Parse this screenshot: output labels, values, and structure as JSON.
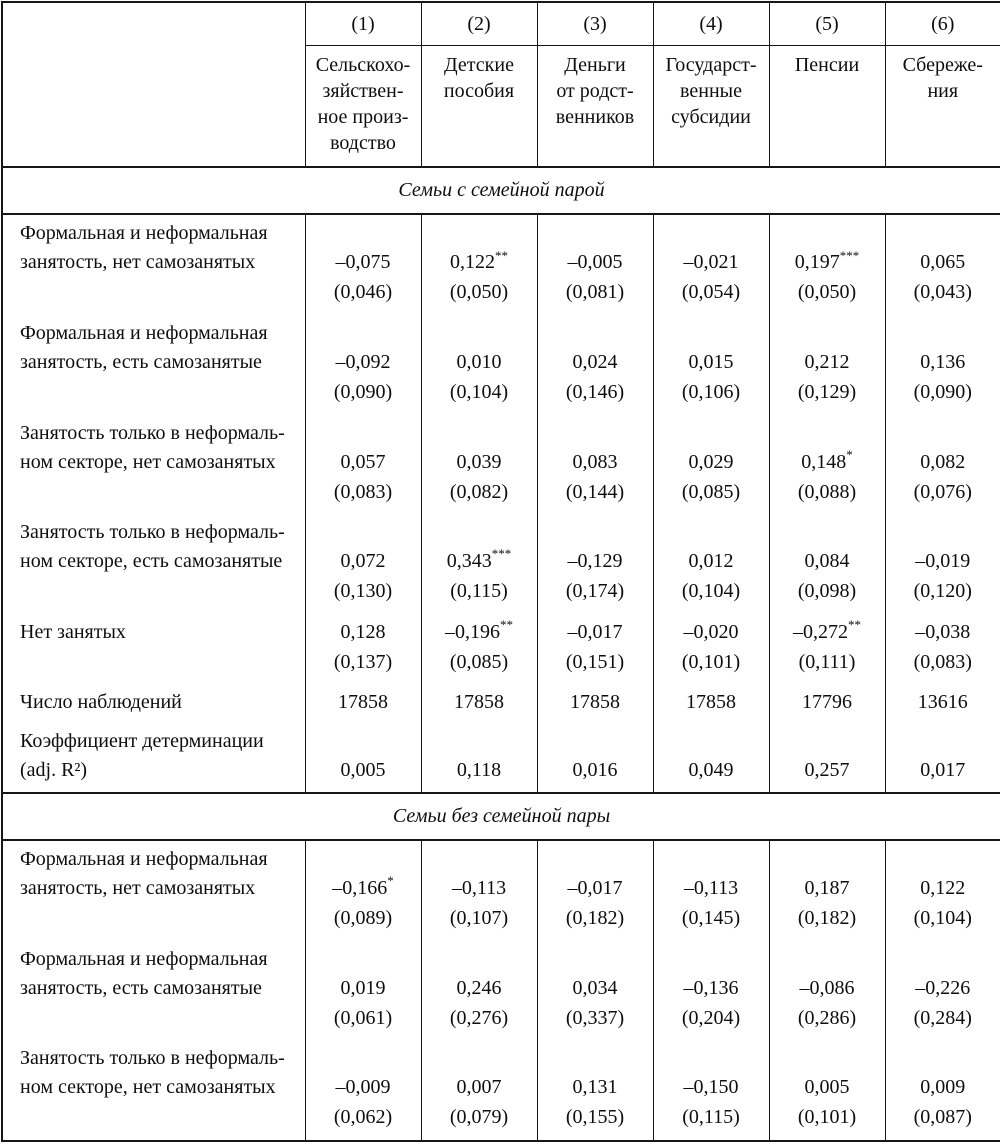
{
  "page": {
    "background": "#ffffff",
    "text_color": "#0e0e0e",
    "border_color": "#161616"
  },
  "table": {
    "column_numbers": [
      "(1)",
      "(2)",
      "(3)",
      "(4)",
      "(5)",
      "(6)"
    ],
    "column_headers": [
      {
        "lines": [
          "Сельскохо-",
          "зяйствен-",
          "ное произ-",
          "водство"
        ]
      },
      {
        "lines": [
          "Детские",
          "пособия"
        ]
      },
      {
        "lines": [
          "Деньги",
          "от родст-",
          "венников"
        ]
      },
      {
        "lines": [
          "Государст-",
          "венные",
          "субсидии"
        ]
      },
      {
        "lines": [
          "Пенсии"
        ]
      },
      {
        "lines": [
          "Сбереже-",
          "ния"
        ]
      }
    ],
    "sections": [
      {
        "title": "Семьи с семейной парой",
        "rows": [
          {
            "label_lines": [
              "Формальная и неформальная",
              "занятость, нет самозанятых"
            ],
            "cells": [
              {
                "value": "–0,075",
                "stars": "",
                "se": "(0,046)"
              },
              {
                "value": "0,122",
                "stars": "**",
                "se": "(0,050)"
              },
              {
                "value": "–0,005",
                "stars": "",
                "se": "(0,081)"
              },
              {
                "value": "–0,021",
                "stars": "",
                "se": "(0,054)"
              },
              {
                "value": "0,197",
                "stars": "***",
                "se": "(0,050)"
              },
              {
                "value": "0,065",
                "stars": "",
                "se": "(0,043)"
              }
            ]
          },
          {
            "label_lines": [
              "Формальная и неформальная",
              "занятость, есть самозанятые"
            ],
            "cells": [
              {
                "value": "–0,092",
                "stars": "",
                "se": "(0,090)"
              },
              {
                "value": "0,010",
                "stars": "",
                "se": "(0,104)"
              },
              {
                "value": "0,024",
                "stars": "",
                "se": "(0,146)"
              },
              {
                "value": "0,015",
                "stars": "",
                "se": "(0,106)"
              },
              {
                "value": "0,212",
                "stars": "",
                "se": "(0,129)"
              },
              {
                "value": "0,136",
                "stars": "",
                "se": "(0,090)"
              }
            ]
          },
          {
            "label_lines": [
              "Занятость только в неформаль-",
              "ном секторе, нет самозанятых"
            ],
            "cells": [
              {
                "value": "0,057",
                "stars": "",
                "se": "(0,083)"
              },
              {
                "value": "0,039",
                "stars": "",
                "se": "(0,082)"
              },
              {
                "value": "0,083",
                "stars": "",
                "se": "(0,144)"
              },
              {
                "value": "0,029",
                "stars": "",
                "se": "(0,085)"
              },
              {
                "value": "0,148",
                "stars": "*",
                "se": "(0,088)"
              },
              {
                "value": "0,082",
                "stars": "",
                "se": "(0,076)"
              }
            ]
          },
          {
            "label_lines": [
              "Занятость только в неформаль-",
              "ном секторе, есть самозанятые"
            ],
            "cells": [
              {
                "value": "0,072",
                "stars": "",
                "se": "(0,130)"
              },
              {
                "value": "0,343",
                "stars": "***",
                "se": "(0,115)"
              },
              {
                "value": "–0,129",
                "stars": "",
                "se": "(0,174)"
              },
              {
                "value": "0,012",
                "stars": "",
                "se": "(0,104)"
              },
              {
                "value": "0,084",
                "stars": "",
                "se": "(0,098)"
              },
              {
                "value": "–0,019",
                "stars": "",
                "se": "(0,120)"
              }
            ]
          },
          {
            "label_lines": [
              "Нет занятых"
            ],
            "cells": [
              {
                "value": "0,128",
                "stars": "",
                "se": "(0,137)"
              },
              {
                "value": "–0,196",
                "stars": "**",
                "se": "(0,085)"
              },
              {
                "value": "–0,017",
                "stars": "",
                "se": "(0,151)"
              },
              {
                "value": "–0,020",
                "stars": "",
                "se": "(0,101)"
              },
              {
                "value": "–0,272",
                "stars": "**",
                "se": "(0,111)"
              },
              {
                "value": "–0,038",
                "stars": "",
                "se": "(0,083)"
              }
            ]
          },
          {
            "label_lines": [
              "Число наблюдений"
            ],
            "cells": [
              {
                "value": "17858",
                "stars": "",
                "se": ""
              },
              {
                "value": "17858",
                "stars": "",
                "se": ""
              },
              {
                "value": "17858",
                "stars": "",
                "se": ""
              },
              {
                "value": "17858",
                "stars": "",
                "se": ""
              },
              {
                "value": "17796",
                "stars": "",
                "se": ""
              },
              {
                "value": "13616",
                "stars": "",
                "se": ""
              }
            ]
          },
          {
            "label_lines": [
              "Коэффициент детерминации",
              "(adj. R²)"
            ],
            "cells": [
              {
                "value": "0,005",
                "stars": "",
                "se": ""
              },
              {
                "value": "0,118",
                "stars": "",
                "se": ""
              },
              {
                "value": "0,016",
                "stars": "",
                "se": ""
              },
              {
                "value": "0,049",
                "stars": "",
                "se": ""
              },
              {
                "value": "0,257",
                "stars": "",
                "se": ""
              },
              {
                "value": "0,017",
                "stars": "",
                "se": ""
              }
            ]
          }
        ]
      },
      {
        "title": "Семьи без семейной пары",
        "rows": [
          {
            "label_lines": [
              "Формальная и неформальная",
              "занятость, нет самозанятых"
            ],
            "cells": [
              {
                "value": "–0,166",
                "stars": "*",
                "se": "(0,089)"
              },
              {
                "value": "–0,113",
                "stars": "",
                "se": "(0,107)"
              },
              {
                "value": "–0,017",
                "stars": "",
                "se": "(0,182)"
              },
              {
                "value": "–0,113",
                "stars": "",
                "se": "(0,145)"
              },
              {
                "value": "0,187",
                "stars": "",
                "se": "(0,182)"
              },
              {
                "value": "0,122",
                "stars": "",
                "se": "(0,104)"
              }
            ]
          },
          {
            "label_lines": [
              "Формальная и неформальная",
              "занятость, есть самозанятые"
            ],
            "cells": [
              {
                "value": "0,019",
                "stars": "",
                "se": "(0,061)"
              },
              {
                "value": "0,246",
                "stars": "",
                "se": "(0,276)"
              },
              {
                "value": "0,034",
                "stars": "",
                "se": "(0,337)"
              },
              {
                "value": "–0,136",
                "stars": "",
                "se": "(0,204)"
              },
              {
                "value": "–0,086",
                "stars": "",
                "se": "(0,286)"
              },
              {
                "value": "–0,226",
                "stars": "",
                "se": "(0,284)"
              }
            ]
          },
          {
            "label_lines": [
              "Занятость только в неформаль-",
              "ном секторе, нет самозанятых"
            ],
            "cells": [
              {
                "value": "–0,009",
                "stars": "",
                "se": "(0,062)"
              },
              {
                "value": "0,007",
                "stars": "",
                "se": "(0,079)"
              },
              {
                "value": "0,131",
                "stars": "",
                "se": "(0,155)"
              },
              {
                "value": "–0,150",
                "stars": "",
                "se": "(0,115)"
              },
              {
                "value": "0,005",
                "stars": "",
                "se": "(0,101)"
              },
              {
                "value": "0,009",
                "stars": "",
                "se": "(0,087)"
              }
            ]
          }
        ]
      }
    ]
  }
}
